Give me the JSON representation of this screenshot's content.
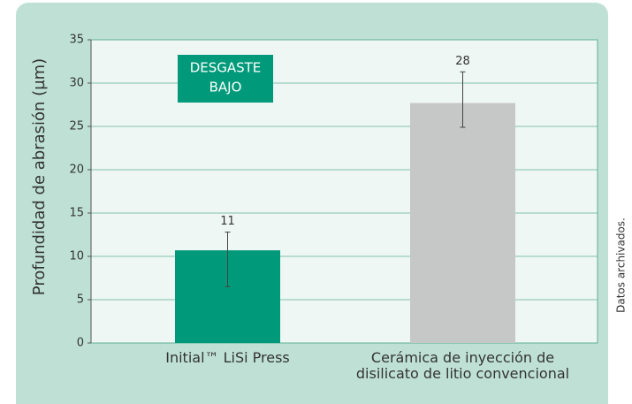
{
  "chart_data": {
    "type": "bar",
    "y_label": "Profundidad de abrasión (µm)",
    "categories": [
      "Initial™ LiSi Press",
      "Cerámica de inyección de disilicato de litio convencional"
    ],
    "values": [
      10.7,
      27.7
    ],
    "value_labels": [
      "11",
      "28"
    ],
    "error_minus": [
      4.2,
      2.8
    ],
    "error_plus": [
      2.1,
      3.6
    ],
    "colors": [
      "#009a7a",
      "#c6c7c7"
    ],
    "ylim": [
      0,
      35
    ],
    "yticks": [
      0,
      5,
      10,
      15,
      20,
      25,
      30,
      35
    ],
    "grid": true,
    "annotation": [
      "DESGASTE",
      "BAJO"
    ],
    "source": "Datos archivados."
  }
}
